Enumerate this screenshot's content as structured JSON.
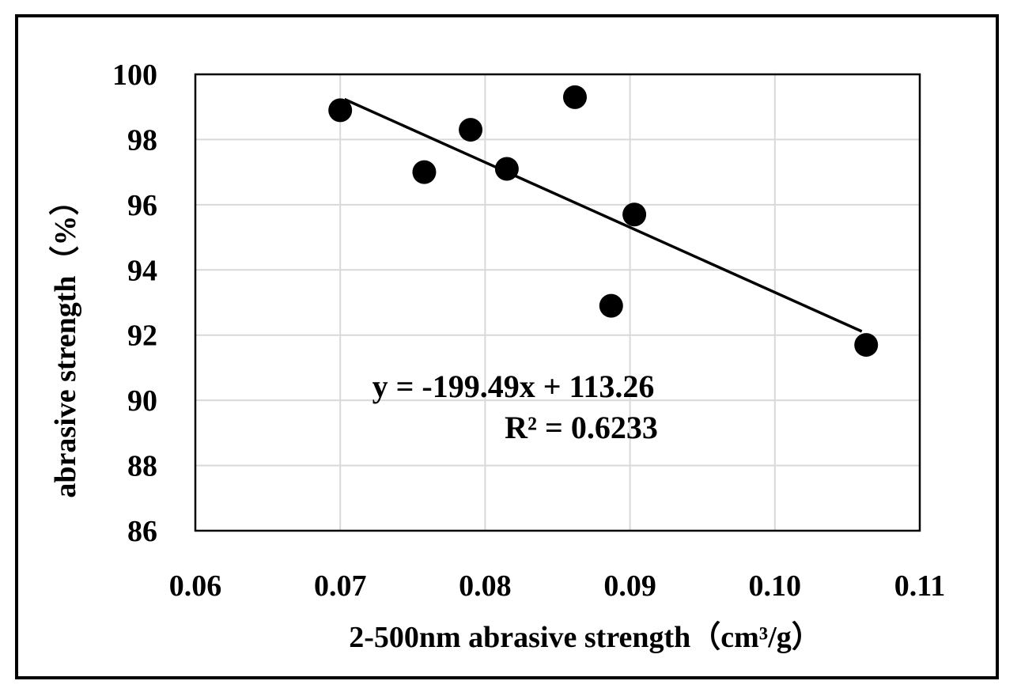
{
  "chart_data": {
    "type": "scatter",
    "xlabel": "2-500nm abrasive strength（cm³/g）",
    "ylabel": "abrasive strength（%）",
    "xlim": [
      0.06,
      0.11
    ],
    "ylim": [
      86,
      100
    ],
    "x_ticks": [
      0.06,
      0.07,
      0.08,
      0.09,
      0.1,
      0.11
    ],
    "x_tick_labels": [
      "0.06",
      "0.07",
      "0.08",
      "0.09",
      "0.10",
      "0.11"
    ],
    "y_ticks": [
      86,
      88,
      90,
      92,
      94,
      96,
      98,
      100
    ],
    "y_tick_labels": [
      "86",
      "88",
      "90",
      "92",
      "94",
      "96",
      "98",
      "100"
    ],
    "grid": true,
    "points": [
      {
        "x": 0.07,
        "y": 98.9
      },
      {
        "x": 0.0758,
        "y": 97.0
      },
      {
        "x": 0.079,
        "y": 98.3
      },
      {
        "x": 0.0815,
        "y": 97.1
      },
      {
        "x": 0.0862,
        "y": 99.3
      },
      {
        "x": 0.0887,
        "y": 92.9
      },
      {
        "x": 0.0903,
        "y": 95.7
      },
      {
        "x": 0.1063,
        "y": 91.7
      }
    ],
    "trendline": {
      "slope": -199.49,
      "intercept": 113.26,
      "x_range": [
        0.0703,
        0.106
      ],
      "equation_label": "y = -199.49x + 113.26",
      "r2_label": "R² = 0.6233"
    },
    "colors": {
      "marker": "#000000",
      "line": "#000000",
      "grid": "#d9d9d9"
    }
  }
}
